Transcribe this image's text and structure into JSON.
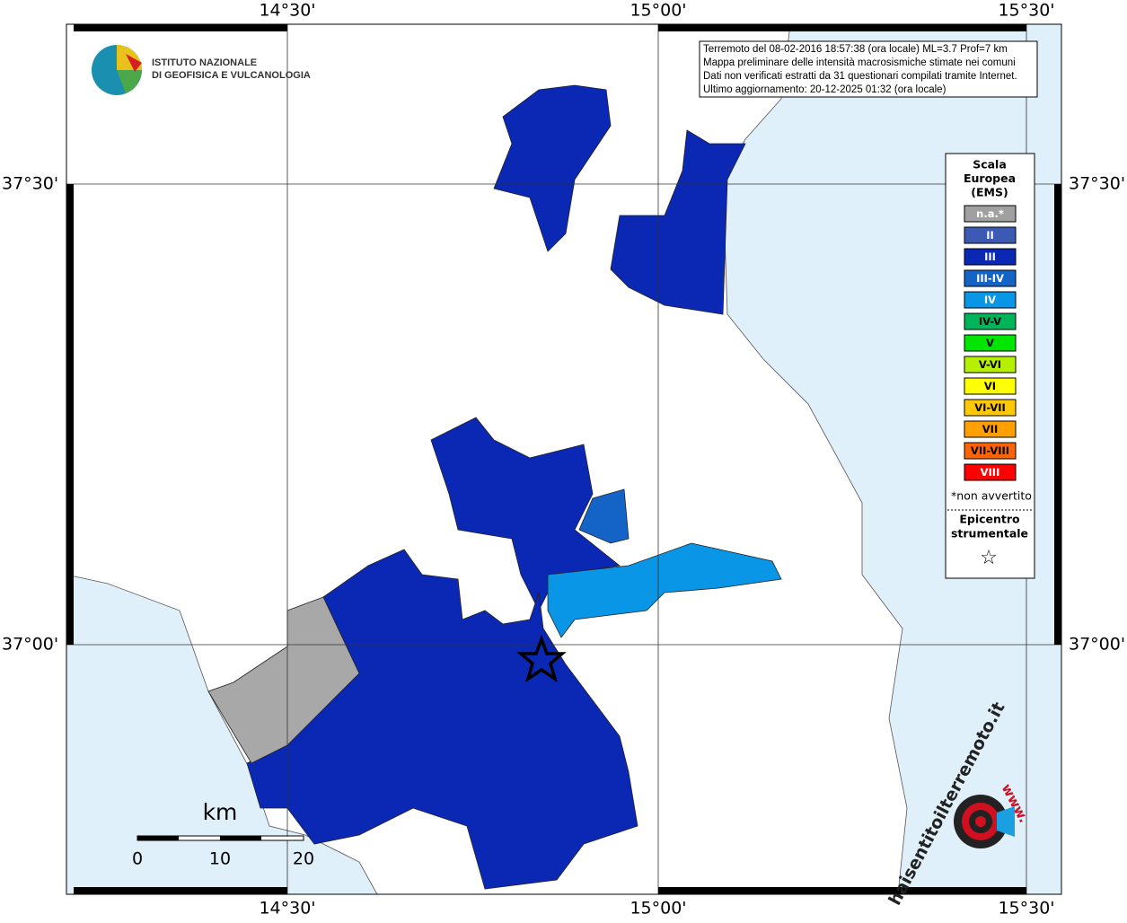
{
  "logo": {
    "lines": [
      "ISTITUTO NAZIONALE",
      "DI GEOFISICA E VULCANOLOGIA"
    ]
  },
  "info": {
    "lines": [
      "Terremoto del 08-02-2016 18:57:38 (ora locale) ML=3.7 Prof=7 km",
      "Mappa preliminare delle intensità macrosismiche stimate nei comuni",
      "Dati non verificati estratti da 31 questionari compilati tramite Internet.",
      "Ultimo aggiornamento: 20-12-2025 01:32 (ora locale)"
    ]
  },
  "axes": {
    "longitude_labels": [
      "14°30'",
      "15°00'",
      "15°30'"
    ],
    "latitude_labels": [
      "37°30'",
      "37°00'"
    ]
  },
  "legend": {
    "title": [
      "Scala",
      "Europea",
      "(EMS)"
    ],
    "items": [
      {
        "label": "n.a.*",
        "color": "#a0a0a0"
      },
      {
        "label": "II",
        "color": "#3c5ab4"
      },
      {
        "label": "III",
        "color": "#0a28b4"
      },
      {
        "label": "III-IV",
        "color": "#1464c8"
      },
      {
        "label": "IV",
        "color": "#0a96e6"
      },
      {
        "label": "IV-V",
        "color": "#00b45a"
      },
      {
        "label": "V",
        "color": "#00e600"
      },
      {
        "label": "V-VI",
        "color": "#b4f000"
      },
      {
        "label": "VI",
        "color": "#ffff00"
      },
      {
        "label": "VI-VII",
        "color": "#ffc800"
      },
      {
        "label": "VII",
        "color": "#ffa000"
      },
      {
        "label": "VII-VIII",
        "color": "#ff6400"
      },
      {
        "label": "VIII",
        "color": "#ff0000"
      }
    ],
    "note": "*non avvertito",
    "epicenter": [
      "Epicentro",
      "strumentale"
    ],
    "epicenter_symbol": "☆"
  },
  "scale_bar": {
    "unit": "km",
    "labels": [
      "0",
      "10",
      "20"
    ]
  },
  "watermark": {
    "site": "haisentitoilterremoto.it",
    "prefix": "www."
  }
}
